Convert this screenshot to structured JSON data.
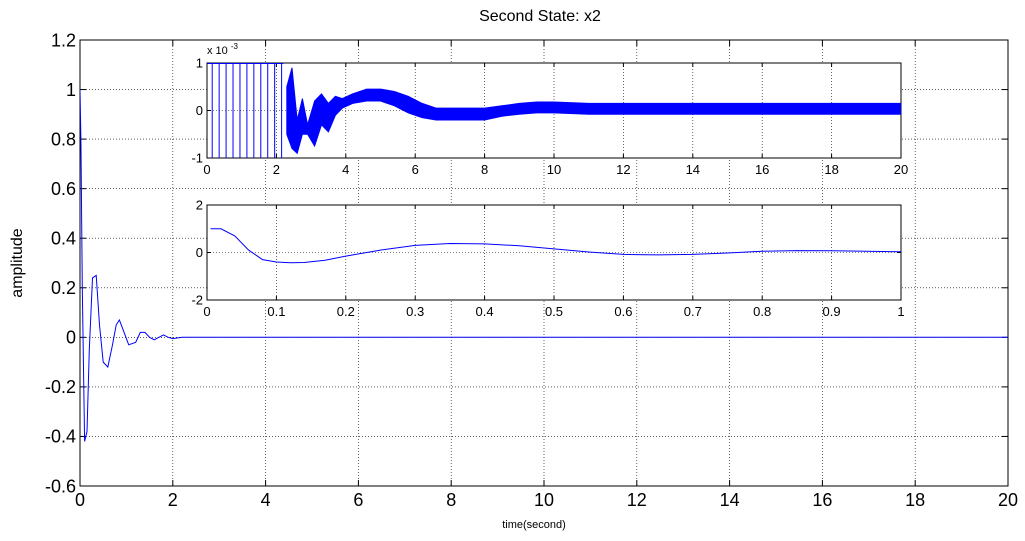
{
  "chart_data": [
    {
      "type": "line",
      "title": "Second State: x2",
      "xlabel": "time(second)",
      "ylabel": "amplitude",
      "xlim": [
        0,
        20
      ],
      "ylim": [
        -0.6,
        1.2
      ],
      "xticks": [
        "0",
        "2",
        "4",
        "6",
        "8",
        "10",
        "12",
        "14",
        "16",
        "18",
        "20"
      ],
      "yticks": [
        "-0.6",
        "-0.4",
        "-0.2",
        "0",
        "0.2",
        "0.4",
        "0.6",
        "0.8",
        "1",
        "1.2"
      ],
      "grid": true,
      "line_color": "#0000ff",
      "series": [
        {
          "x": [
            0,
            0.02,
            0.05,
            0.1,
            0.15,
            0.2,
            0.27,
            0.35,
            0.42,
            0.5,
            0.6,
            0.7,
            0.78,
            0.85,
            0.95,
            1.05,
            1.2,
            1.3,
            1.4,
            1.5,
            1.6,
            1.7,
            1.8,
            1.9,
            2.0,
            2.2,
            2.5,
            2.7,
            3.0,
            20
          ],
          "y": [
            1.0,
            0.8,
            0.2,
            -0.42,
            -0.38,
            -0.05,
            0.24,
            0.25,
            0.05,
            -0.1,
            -0.12,
            -0.03,
            0.05,
            0.07,
            0.02,
            -0.03,
            -0.02,
            0.02,
            0.02,
            0.0,
            -0.01,
            0.0,
            0.01,
            0.0,
            -0.005,
            0.0,
            0.0,
            0.0,
            0.0,
            0.0
          ]
        }
      ]
    },
    {
      "type": "line",
      "exponent_label": "x 10",
      "exponent": "-3",
      "xlim": [
        0,
        20
      ],
      "ylim": [
        -1,
        1
      ],
      "xticks": [
        "0",
        "2",
        "4",
        "6",
        "8",
        "10",
        "12",
        "14",
        "16",
        "18",
        "20"
      ],
      "yticks": [
        "-1",
        "0",
        "1"
      ],
      "grid": true,
      "line_color": "#0000ff",
      "clip_region_end_x": 2.2,
      "series": [
        {
          "envelope_x": [
            2.3,
            2.45,
            2.6,
            2.75,
            2.9,
            3.1,
            3.3,
            3.5,
            3.7,
            3.9,
            4.2,
            4.6,
            5.0,
            5.4,
            5.8,
            6.2,
            6.6,
            7.2,
            8.0,
            8.5,
            9.0,
            9.5,
            10.0,
            11.0,
            12.0,
            14.0,
            16.0,
            18.0,
            20.0
          ],
          "envelope_upper": [
            0.5,
            0.9,
            -0.2,
            0.25,
            -0.3,
            0.2,
            0.35,
            0.15,
            0.3,
            0.25,
            0.35,
            0.45,
            0.45,
            0.4,
            0.3,
            0.15,
            0.05,
            0.05,
            0.05,
            0.1,
            0.15,
            0.18,
            0.18,
            0.15,
            0.15,
            0.15,
            0.15,
            0.15,
            0.15
          ],
          "envelope_lower": [
            -0.5,
            -0.8,
            -0.9,
            -0.5,
            -0.5,
            -0.75,
            -0.3,
            -0.45,
            -0.1,
            0.05,
            0.15,
            0.2,
            0.2,
            0.1,
            -0.05,
            -0.15,
            -0.2,
            -0.2,
            -0.2,
            -0.12,
            -0.08,
            -0.05,
            -0.05,
            -0.08,
            -0.08,
            -0.08,
            -0.08,
            -0.08,
            -0.08
          ]
        }
      ]
    },
    {
      "type": "line",
      "xlim": [
        0,
        1
      ],
      "ylim": [
        -2,
        2
      ],
      "xticks": [
        "0",
        "0.1",
        "0.2",
        "0.3",
        "0.4",
        "0.5",
        "0.6",
        "0.7",
        "0.8",
        "0.9",
        "1"
      ],
      "yticks": [
        "-2",
        "0",
        "2"
      ],
      "grid": true,
      "line_color": "#0000ff",
      "series": [
        {
          "x": [
            0.005,
            0.02,
            0.04,
            0.06,
            0.08,
            0.1,
            0.12,
            0.14,
            0.17,
            0.2,
            0.25,
            0.3,
            0.35,
            0.4,
            0.45,
            0.5,
            0.55,
            0.6,
            0.65,
            0.7,
            0.75,
            0.8,
            0.85,
            0.9,
            0.95,
            1.0
          ],
          "y": [
            1.0,
            1.0,
            0.7,
            0.1,
            -0.3,
            -0.4,
            -0.43,
            -0.42,
            -0.33,
            -0.15,
            0.1,
            0.3,
            0.38,
            0.36,
            0.28,
            0.15,
            0.02,
            -0.08,
            -0.1,
            -0.08,
            -0.02,
            0.05,
            0.08,
            0.07,
            0.05,
            0.03
          ]
        }
      ]
    }
  ]
}
